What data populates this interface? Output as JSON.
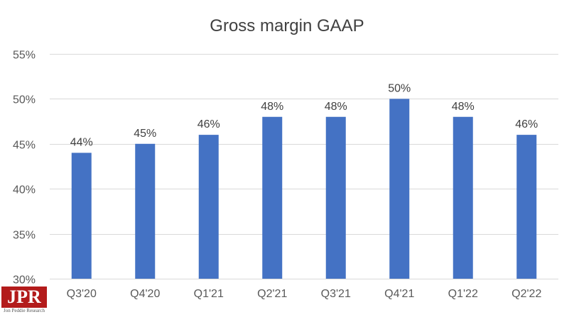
{
  "chart_data": {
    "type": "bar",
    "title": "Gross margin GAAP",
    "xlabel": "",
    "ylabel": "",
    "categories": [
      "Q3'20",
      "Q4'20",
      "Q1'21",
      "Q2'21",
      "Q3'21",
      "Q4'21",
      "Q1'22",
      "Q2'22"
    ],
    "values": [
      44,
      45,
      46,
      48,
      48,
      50,
      48,
      46
    ],
    "data_labels": [
      "44%",
      "45%",
      "46%",
      "48%",
      "48%",
      "50%",
      "48%",
      "46%"
    ],
    "ylim": [
      30,
      55
    ],
    "y_ticks": [
      30,
      35,
      40,
      45,
      50,
      55
    ],
    "y_tick_labels": [
      "30%",
      "35%",
      "40%",
      "45%",
      "50%",
      "55%"
    ],
    "bar_color": "#4472c4",
    "grid": true,
    "legend": "none"
  },
  "logo": {
    "mark": "JPR",
    "subtitle": "Jon Peddie Research",
    "color": "#b31b1b"
  }
}
